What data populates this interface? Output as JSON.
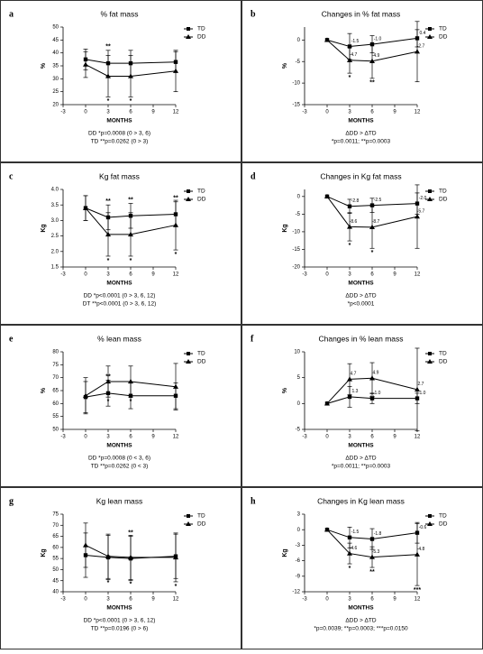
{
  "chart_data": [
    {
      "type": "line",
      "panel": "a",
      "title": "% fat mass",
      "xlabel": "MONTHS",
      "ylabel": "%",
      "x": [
        0,
        3,
        6,
        12
      ],
      "xlim": [
        -3,
        12
      ],
      "xticks": [
        -3,
        0,
        3,
        6,
        9,
        12
      ],
      "ylim": [
        20,
        50
      ],
      "yticks": [
        20,
        25,
        30,
        35,
        40,
        45,
        50
      ],
      "legend": "upper right",
      "series": [
        {
          "name": "TD",
          "color": "#000000",
          "marker": "square",
          "values": [
            37.5,
            36,
            36,
            36.5
          ],
          "errors": [
            4,
            5,
            5,
            4
          ],
          "flags": [
            null,
            "**",
            null,
            null
          ]
        },
        {
          "name": "DD",
          "color": "#000000",
          "marker": "triangle",
          "values": [
            35.5,
            31,
            31,
            33
          ],
          "errors": [
            5,
            8,
            8,
            8
          ],
          "flags": [
            null,
            "*",
            "*",
            null
          ]
        }
      ],
      "notes": [
        "DD *p=0.0008 (0 > 3, 6)",
        "TD **p=0.0262 (0 > 3)"
      ]
    },
    {
      "type": "line",
      "panel": "b",
      "title": "Changes in % fat mass",
      "xlabel": "MONTHS",
      "ylabel": "%",
      "x": [
        0,
        3,
        6,
        12
      ],
      "xlim": [
        -3,
        12
      ],
      "xticks": [
        -3,
        0,
        3,
        6,
        9,
        12
      ],
      "ylim": [
        -15,
        3
      ],
      "yticks": [
        -15,
        -10,
        -5,
        0
      ],
      "legend": "upper right",
      "series": [
        {
          "name": "TD",
          "color": "#000000",
          "marker": "square",
          "values": [
            0,
            -1.5,
            -1.0,
            0.4
          ],
          "value_labels": [
            null,
            "-1.5",
            "-1.0",
            "0.4"
          ],
          "errors": [
            0,
            3,
            2,
            2
          ],
          "flags": [
            null,
            null,
            null,
            null
          ]
        },
        {
          "name": "DD",
          "color": "#000000",
          "marker": "triangle",
          "values": [
            0,
            -4.7,
            -4.9,
            -2.7
          ],
          "value_labels": [
            null,
            "-4.7",
            "-4.9",
            "-2.7"
          ],
          "errors": [
            0,
            3,
            4,
            7
          ],
          "flags": [
            null,
            "*",
            "**",
            null
          ]
        }
      ],
      "notes": [
        "ΔDD > ΔTD",
        "*p=0.0011; **p=0.0003"
      ]
    },
    {
      "type": "line",
      "panel": "c",
      "title": "Kg fat mass",
      "xlabel": "MONTHS",
      "ylabel": "Kg",
      "x": [
        0,
        3,
        6,
        12
      ],
      "xlim": [
        -3,
        12
      ],
      "xticks": [
        -3,
        0,
        3,
        6,
        9,
        12
      ],
      "ylim": [
        1.5,
        4
      ],
      "yticks": [
        1.5,
        {
          "value": 2,
          "label": "2.0"
        },
        2.5,
        {
          "value": 3,
          "label": "3.0"
        },
        3.5,
        {
          "value": 4,
          "label": "4.0"
        }
      ],
      "legend": "upper right",
      "series": [
        {
          "name": "TD",
          "color": "#000000",
          "marker": "square",
          "values": [
            3.4,
            3.1,
            3.15,
            3.2
          ],
          "errors": [
            0.4,
            0.4,
            0.4,
            0.4
          ],
          "flags": [
            null,
            "**",
            "**",
            "**"
          ]
        },
        {
          "name": "DD",
          "color": "#000000",
          "marker": "triangle",
          "values": [
            3.4,
            2.55,
            2.55,
            2.85
          ],
          "errors": [
            0.4,
            0.7,
            0.7,
            0.8
          ],
          "flags": [
            null,
            "*",
            "*",
            "*"
          ]
        }
      ],
      "notes": [
        "DD *p<0.0001 (0 > 3, 6, 12)",
        "DT **p<0.0001 (0 > 3, 6, 12)"
      ]
    },
    {
      "type": "line",
      "panel": "d",
      "title": "Changes in Kg fat mass",
      "xlabel": "MONTHS",
      "ylabel": "Kg",
      "x": [
        0,
        3,
        6,
        12
      ],
      "xlim": [
        -3,
        12
      ],
      "xticks": [
        -3,
        0,
        3,
        6,
        9,
        12
      ],
      "ylim": [
        -20,
        2
      ],
      "yticks": [
        -20,
        -15,
        -10,
        -5,
        0
      ],
      "legend": "upper right",
      "series": [
        {
          "name": "TD",
          "color": "#000000",
          "marker": "square",
          "values": [
            0,
            -2.8,
            -2.5,
            -2.0
          ],
          "value_labels": [
            null,
            "-2.8",
            "-2.5",
            "-2.0"
          ],
          "errors": [
            0,
            2,
            2,
            3
          ],
          "flags": [
            null,
            null,
            null,
            null
          ]
        },
        {
          "name": "DD",
          "color": "#000000",
          "marker": "triangle",
          "values": [
            0,
            -8.6,
            -8.7,
            -5.7
          ],
          "value_labels": [
            null,
            "-8.6",
            "-8.7",
            "-5.7"
          ],
          "errors": [
            0,
            4,
            6,
            9
          ],
          "flags": [
            null,
            "*",
            "*",
            null
          ]
        }
      ],
      "notes": [
        "ΔDD > ΔTD",
        "*p<0.0001"
      ]
    },
    {
      "type": "line",
      "panel": "e",
      "title": "% lean mass",
      "xlabel": "MONTHS",
      "ylabel": "%",
      "x": [
        0,
        3,
        6,
        12
      ],
      "xlim": [
        -3,
        12
      ],
      "xticks": [
        -3,
        0,
        3,
        6,
        9,
        12
      ],
      "ylim": [
        50,
        80
      ],
      "yticks": [
        50,
        55,
        60,
        65,
        70,
        75,
        80
      ],
      "legend": "upper right",
      "series": [
        {
          "name": "TD",
          "color": "#000000",
          "marker": "square",
          "values": [
            62.5,
            64,
            63,
            63
          ],
          "errors": [
            6,
            5,
            5,
            5
          ],
          "flags": [
            null,
            "**",
            null,
            null
          ]
        },
        {
          "name": "DD",
          "color": "#000000",
          "marker": "triangle",
          "values": [
            63,
            68.5,
            68.5,
            66.5
          ],
          "errors": [
            7,
            6,
            6,
            9
          ],
          "flags": [
            null,
            "*",
            "*",
            null
          ]
        }
      ],
      "notes": [
        "DD *p=0.0008 (0 < 3, 6)",
        "TD **p=0.0262 (0 < 3)"
      ]
    },
    {
      "type": "line",
      "panel": "f",
      "title": "Changes in % lean mass",
      "xlabel": "MONTHS",
      "ylabel": "%",
      "x": [
        0,
        3,
        6,
        12
      ],
      "xlim": [
        -3,
        12
      ],
      "xticks": [
        -3,
        0,
        3,
        6,
        9,
        12
      ],
      "ylim": [
        -5,
        10
      ],
      "yticks": [
        -5,
        0,
        5,
        10
      ],
      "legend": "upper right",
      "series": [
        {
          "name": "TD",
          "color": "#000000",
          "marker": "square",
          "values": [
            0,
            1.3,
            1.0,
            1.0
          ],
          "value_labels": [
            null,
            "1.3",
            "1.0",
            "1.0"
          ],
          "errors": [
            0,
            2,
            1,
            1
          ],
          "flags": [
            null,
            null,
            null,
            null
          ]
        },
        {
          "name": "DD",
          "color": "#000000",
          "marker": "triangle",
          "values": [
            0,
            4.7,
            4.9,
            2.7
          ],
          "value_labels": [
            null,
            "4.7",
            "4.9",
            "2.7"
          ],
          "errors": [
            0,
            3,
            3,
            8
          ],
          "flags": [
            null,
            "*",
            "**",
            null
          ]
        }
      ],
      "notes": [
        "ΔDD > ΔTD",
        "*p=0.0011; **p=0.0003"
      ]
    },
    {
      "type": "line",
      "panel": "g",
      "title": "Kg lean mass",
      "xlabel": "MONTHS",
      "ylabel": "Kg",
      "x": [
        0,
        3,
        6,
        12
      ],
      "xlim": [
        -3,
        12
      ],
      "xticks": [
        -3,
        0,
        3,
        6,
        9,
        12
      ],
      "ylim": [
        40,
        75
      ],
      "yticks": [
        40,
        45,
        50,
        55,
        60,
        65,
        70,
        75
      ],
      "legend": "upper right",
      "series": [
        {
          "name": "TD",
          "color": "#000000",
          "marker": "square",
          "values": [
            56.5,
            55.5,
            55,
            56
          ],
          "errors": [
            10,
            10,
            10,
            10
          ],
          "flags": [
            null,
            null,
            "**",
            null
          ]
        },
        {
          "name": "DD",
          "color": "#000000",
          "marker": "triangle",
          "values": [
            61,
            56,
            55.5,
            55.5
          ],
          "errors": [
            10,
            10,
            10,
            11
          ],
          "flags": [
            null,
            "*",
            "*",
            "*"
          ]
        }
      ],
      "notes": [
        "DD *p<0.0001 (0 > 3, 6, 12)",
        "TD **p=0.0196 (0 > 6)"
      ]
    },
    {
      "type": "line",
      "panel": "h",
      "title": "Changes in Kg lean mass",
      "xlabel": "MONTHS",
      "ylabel": "Kg",
      "x": [
        0,
        3,
        6,
        12
      ],
      "xlim": [
        -3,
        12
      ],
      "xticks": [
        -3,
        0,
        3,
        6,
        9,
        12
      ],
      "ylim": [
        -12,
        3
      ],
      "yticks": [
        -12,
        -9,
        -6,
        -3,
        0,
        3
      ],
      "legend": "upper right",
      "series": [
        {
          "name": "TD",
          "color": "#000000",
          "marker": "square",
          "values": [
            0,
            -1.5,
            -1.8,
            -0.6
          ],
          "value_labels": [
            null,
            "-1.5",
            "-1.8",
            "-0.6"
          ],
          "errors": [
            0,
            2,
            2,
            2
          ],
          "flags": [
            null,
            null,
            null,
            null
          ]
        },
        {
          "name": "DD",
          "color": "#000000",
          "marker": "triangle",
          "values": [
            0,
            -4.6,
            -5.3,
            -4.8
          ],
          "value_labels": [
            null,
            "-4.6",
            "-5.3",
            "-4.8"
          ],
          "errors": [
            0,
            2,
            2,
            6
          ],
          "flags": [
            null,
            "*",
            "**",
            "***"
          ]
        }
      ],
      "notes": [
        "ΔDD > ΔTD",
        "*p=0.0039; **p=0.0003; ***p=0.0150"
      ]
    }
  ]
}
